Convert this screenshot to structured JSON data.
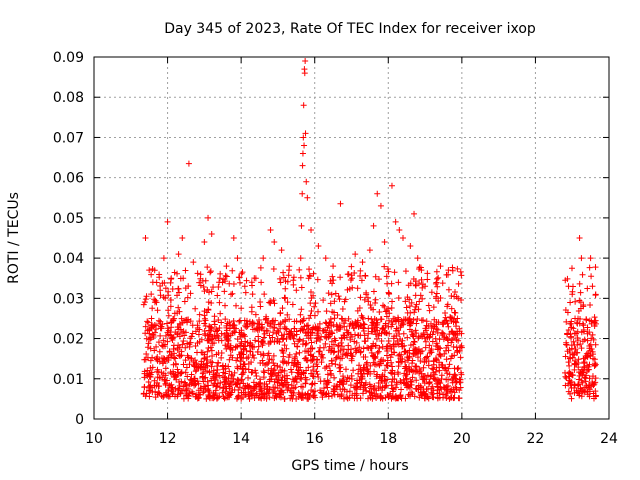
{
  "chart_data": {
    "type": "scatter",
    "title": "Day 345 of 2023, Rate Of TEC Index for receiver ixop",
    "xlabel": "GPS time / hours",
    "ylabel": "ROTI / TECUs",
    "xlim": [
      10,
      24
    ],
    "ylim": [
      0,
      0.09
    ],
    "xticks": [
      "10",
      "12",
      "14",
      "16",
      "18",
      "20",
      "22",
      "24"
    ],
    "yticks": [
      "0",
      "0.01",
      "0.02",
      "0.03",
      "0.04",
      "0.05",
      "0.06",
      "0.07",
      "0.08",
      "0.09"
    ],
    "grid": true,
    "marker": "+",
    "color": "#ff0000",
    "series": [
      {
        "name": "ROTI",
        "points": [
          [
            11.4,
            0.045
          ],
          [
            11.5,
            0.037
          ],
          [
            11.6,
            0.034
          ],
          [
            11.7,
            0.029
          ],
          [
            11.8,
            0.032
          ],
          [
            11.9,
            0.04
          ],
          [
            12.0,
            0.049
          ],
          [
            12.1,
            0.035
          ],
          [
            12.3,
            0.041
          ],
          [
            12.4,
            0.045
          ],
          [
            12.58,
            0.0635
          ],
          [
            12.7,
            0.039
          ],
          [
            12.9,
            0.036
          ],
          [
            13.0,
            0.044
          ],
          [
            13.1,
            0.05
          ],
          [
            13.2,
            0.046
          ],
          [
            13.4,
            0.034
          ],
          [
            13.6,
            0.038
          ],
          [
            13.8,
            0.045
          ],
          [
            13.9,
            0.04
          ],
          [
            14.1,
            0.033
          ],
          [
            14.4,
            0.035
          ],
          [
            14.6,
            0.04
          ],
          [
            14.8,
            0.047
          ],
          [
            14.9,
            0.044
          ],
          [
            15.1,
            0.042
          ],
          [
            15.3,
            0.037
          ],
          [
            15.5,
            0.032
          ],
          [
            15.62,
            0.04
          ],
          [
            15.64,
            0.048
          ],
          [
            15.66,
            0.056
          ],
          [
            15.67,
            0.063
          ],
          [
            15.68,
            0.066
          ],
          [
            15.69,
            0.07
          ],
          [
            15.7,
            0.078
          ],
          [
            15.71,
            0.068
          ],
          [
            15.72,
            0.087
          ],
          [
            15.73,
            0.086
          ],
          [
            15.74,
            0.089
          ],
          [
            15.75,
            0.071
          ],
          [
            15.77,
            0.059
          ],
          [
            15.8,
            0.055
          ],
          [
            15.9,
            0.047
          ],
          [
            16.1,
            0.043
          ],
          [
            16.3,
            0.04
          ],
          [
            16.5,
            0.038
          ],
          [
            16.7,
            0.0535
          ],
          [
            16.9,
            0.036
          ],
          [
            17.1,
            0.041
          ],
          [
            17.3,
            0.039
          ],
          [
            17.5,
            0.042
          ],
          [
            17.6,
            0.048
          ],
          [
            17.7,
            0.056
          ],
          [
            17.8,
            0.053
          ],
          [
            17.9,
            0.044
          ],
          [
            18.1,
            0.058
          ],
          [
            18.2,
            0.049
          ],
          [
            18.3,
            0.047
          ],
          [
            18.4,
            0.045
          ],
          [
            18.6,
            0.043
          ],
          [
            18.7,
            0.051
          ],
          [
            18.8,
            0.04
          ],
          [
            18.9,
            0.037
          ],
          [
            19.0,
            0.033
          ],
          [
            19.3,
            0.03
          ],
          [
            19.6,
            0.028
          ],
          [
            19.9,
            0.03
          ],
          [
            22.9,
            0.033
          ],
          [
            23.0,
            0.031
          ],
          [
            23.2,
            0.045
          ],
          [
            23.25,
            0.04
          ],
          [
            23.3,
            0.028
          ],
          [
            23.5,
            0.04
          ],
          [
            23.55,
            0.033
          ],
          [
            23.6,
            0.024
          ]
        ],
        "clusters": [
          {
            "x_range": [
              11.35,
              20.0
            ],
            "y_band": [
              0.005,
              0.025
            ],
            "density": "high"
          },
          {
            "x_range": [
              22.8,
              23.65
            ],
            "y_band": [
              0.005,
              0.025
            ],
            "density": "high"
          }
        ]
      }
    ]
  }
}
